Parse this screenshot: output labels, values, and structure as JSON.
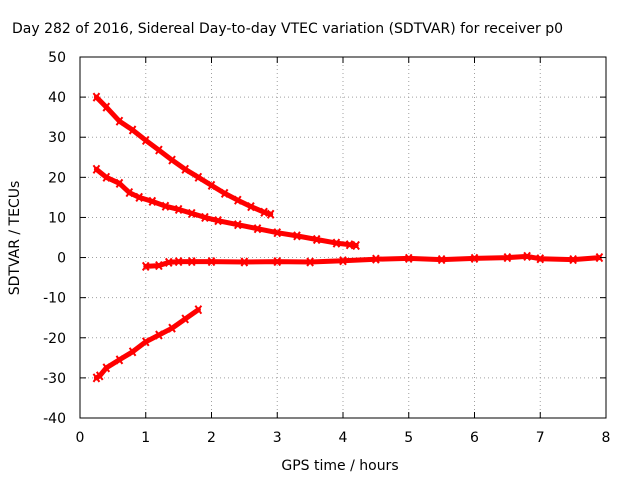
{
  "chart_data": {
    "type": "scatter",
    "title": "Day 282 of 2016, Sidereal Day-to-day VTEC variation (SDTVAR) for receiver p0",
    "xlabel": "GPS time / hours",
    "ylabel": "SDTVAR / TECUs",
    "xlim": [
      0,
      8
    ],
    "ylim": [
      -40,
      50
    ],
    "xticks": [
      "0",
      "1",
      "2",
      "3",
      "4",
      "5",
      "6",
      "7",
      "8"
    ],
    "yticks": [
      "-40",
      "-30",
      "-20",
      "-10",
      "0",
      "10",
      "20",
      "30",
      "40",
      "50"
    ],
    "grid": true,
    "legend": "none",
    "marker_color": "#ff0000",
    "series": [
      {
        "points": [
          [
            0.25,
            40
          ],
          [
            0.4,
            37.5
          ],
          [
            0.6,
            34
          ],
          [
            0.8,
            31.8
          ],
          [
            1.0,
            29.2
          ],
          [
            1.2,
            26.8
          ],
          [
            1.4,
            24.3
          ],
          [
            1.6,
            22
          ],
          [
            1.8,
            20
          ],
          [
            2.0,
            18
          ],
          [
            2.2,
            16
          ],
          [
            2.4,
            14.3
          ],
          [
            2.6,
            12.7
          ],
          [
            2.8,
            11.3
          ],
          [
            2.9,
            10.8
          ]
        ]
      },
      {
        "points": [
          [
            0.25,
            22
          ],
          [
            0.4,
            20
          ],
          [
            0.6,
            18.5
          ],
          [
            0.75,
            16.2
          ],
          [
            0.9,
            15
          ],
          [
            1.1,
            14
          ],
          [
            1.3,
            12.8
          ],
          [
            1.5,
            12
          ],
          [
            1.7,
            11
          ],
          [
            1.9,
            10
          ],
          [
            2.1,
            9.2
          ],
          [
            2.4,
            8.2
          ],
          [
            2.7,
            7.2
          ],
          [
            3.0,
            6.2
          ],
          [
            3.3,
            5.4
          ],
          [
            3.6,
            4.5
          ],
          [
            3.9,
            3.6
          ],
          [
            4.1,
            3.2
          ],
          [
            4.2,
            3
          ]
        ]
      },
      {
        "points": [
          [
            1.0,
            -2.2
          ],
          [
            1.2,
            -2
          ],
          [
            1.35,
            -1.2
          ],
          [
            1.5,
            -1
          ],
          [
            1.7,
            -1
          ],
          [
            2.0,
            -1
          ],
          [
            2.5,
            -1.1
          ],
          [
            3.0,
            -1
          ],
          [
            3.5,
            -1.1
          ],
          [
            4.0,
            -0.8
          ],
          [
            4.5,
            -0.4
          ],
          [
            5.0,
            -0.2
          ],
          [
            5.5,
            -0.5
          ],
          [
            6.0,
            -0.2
          ],
          [
            6.5,
            0
          ],
          [
            6.8,
            0.3
          ],
          [
            7.0,
            -0.3
          ],
          [
            7.5,
            -0.5
          ],
          [
            7.9,
            0
          ]
        ]
      },
      {
        "points": [
          [
            0.25,
            -30
          ],
          [
            0.3,
            -29.5
          ],
          [
            0.4,
            -27.5
          ],
          [
            0.6,
            -25.5
          ],
          [
            0.8,
            -23.5
          ],
          [
            1.0,
            -21
          ],
          [
            1.2,
            -19.3
          ],
          [
            1.4,
            -17.6
          ],
          [
            1.6,
            -15.3
          ],
          [
            1.8,
            -13
          ]
        ]
      }
    ]
  }
}
